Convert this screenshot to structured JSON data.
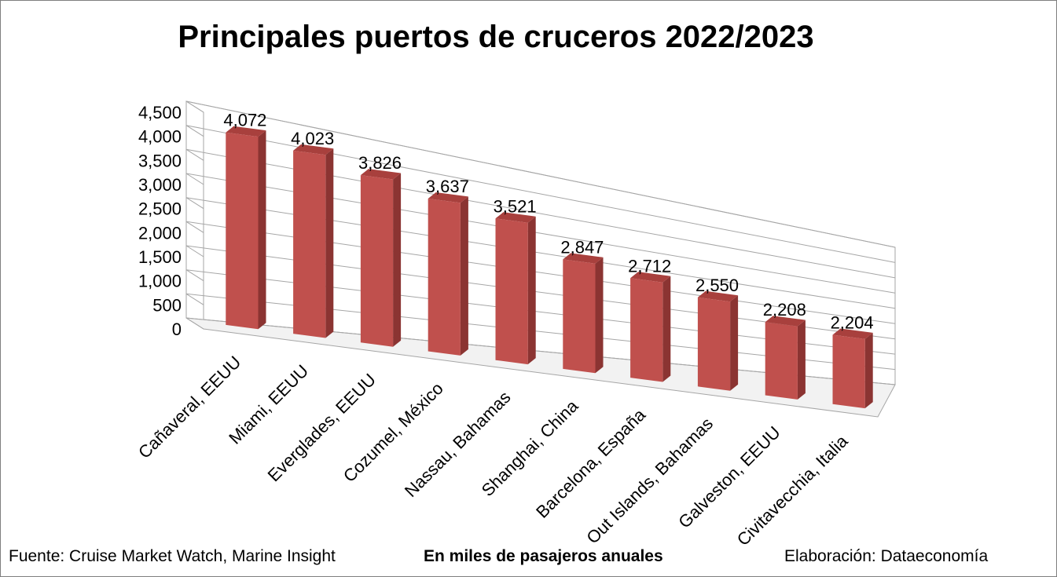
{
  "chart_data": {
    "type": "bar",
    "style": "3d-column",
    "title": "Principales puertos de cruceros 2022/2023",
    "categories": [
      "Cañaveral, EEUU",
      "Miami, EEUU",
      "Everglades, EEUU",
      "Cozumel, México",
      "Nassau, Bahamas",
      "Shanghai, China",
      "Barcelona, España",
      "Out Islands, Bahamas",
      "Galveston, EEUU",
      "Civitavecchia, Italia"
    ],
    "values": [
      4072,
      4023,
      3826,
      3637,
      3521,
      2847,
      2712,
      2550,
      2208,
      2204
    ],
    "value_labels": [
      "4,072",
      "4,023",
      "3,826",
      "3,637",
      "3,521",
      "2,847",
      "2,712",
      "2,550",
      "2,208",
      "2,204"
    ],
    "ylim": [
      0,
      4500
    ],
    "yticks": [
      "0",
      "500",
      "1,000",
      "1,500",
      "2,000",
      "2,500",
      "3,000",
      "3,500",
      "4,000",
      "4,500"
    ],
    "grid": true,
    "legend": "none",
    "bar_color": "#c0504d"
  },
  "footer": {
    "source": "Fuente:  Cruise Market Watch, Marine Insight",
    "units": "En miles de pasajeros anuales",
    "credit": "Elaboración: Dataeconomía"
  }
}
